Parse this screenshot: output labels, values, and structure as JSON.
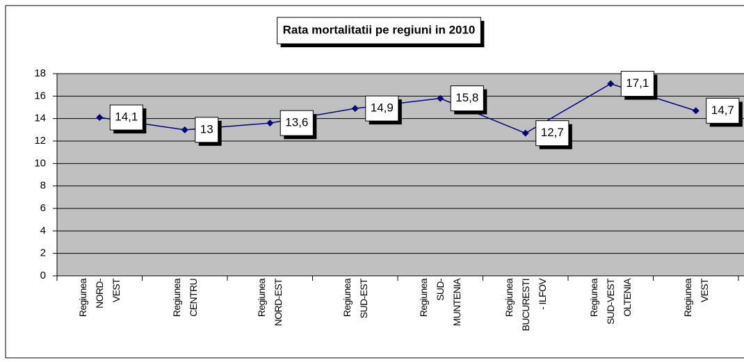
{
  "chart_data": {
    "type": "line",
    "title": "Rata mortalitatii pe regiuni in 2010",
    "categories": [
      "Regiunea\nNORD-\nVEST",
      "Regiunea\nCENTRU",
      "Regiunea\nNORD-EST",
      "Regiunea\nSUD-EST",
      "Regiunea\nSUD-\nMUNTENIA",
      "Regiunea\nBUCURESTI\n- ILFOV",
      "Regiunea\nSUD-VEST\nOLTENIA",
      "Regiunea\nVEST"
    ],
    "values": [
      14.1,
      13,
      13.6,
      14.9,
      15.8,
      12.7,
      17.1,
      14.7
    ],
    "value_labels": [
      "14,1",
      "13",
      "13,6",
      "14,9",
      "15,8",
      "12,7",
      "17,1",
      "14,7"
    ],
    "color": "#000080",
    "ylim": [
      0,
      18
    ],
    "yticks": [
      0,
      2,
      4,
      6,
      8,
      10,
      12,
      14,
      16,
      18
    ],
    "grid": true
  }
}
